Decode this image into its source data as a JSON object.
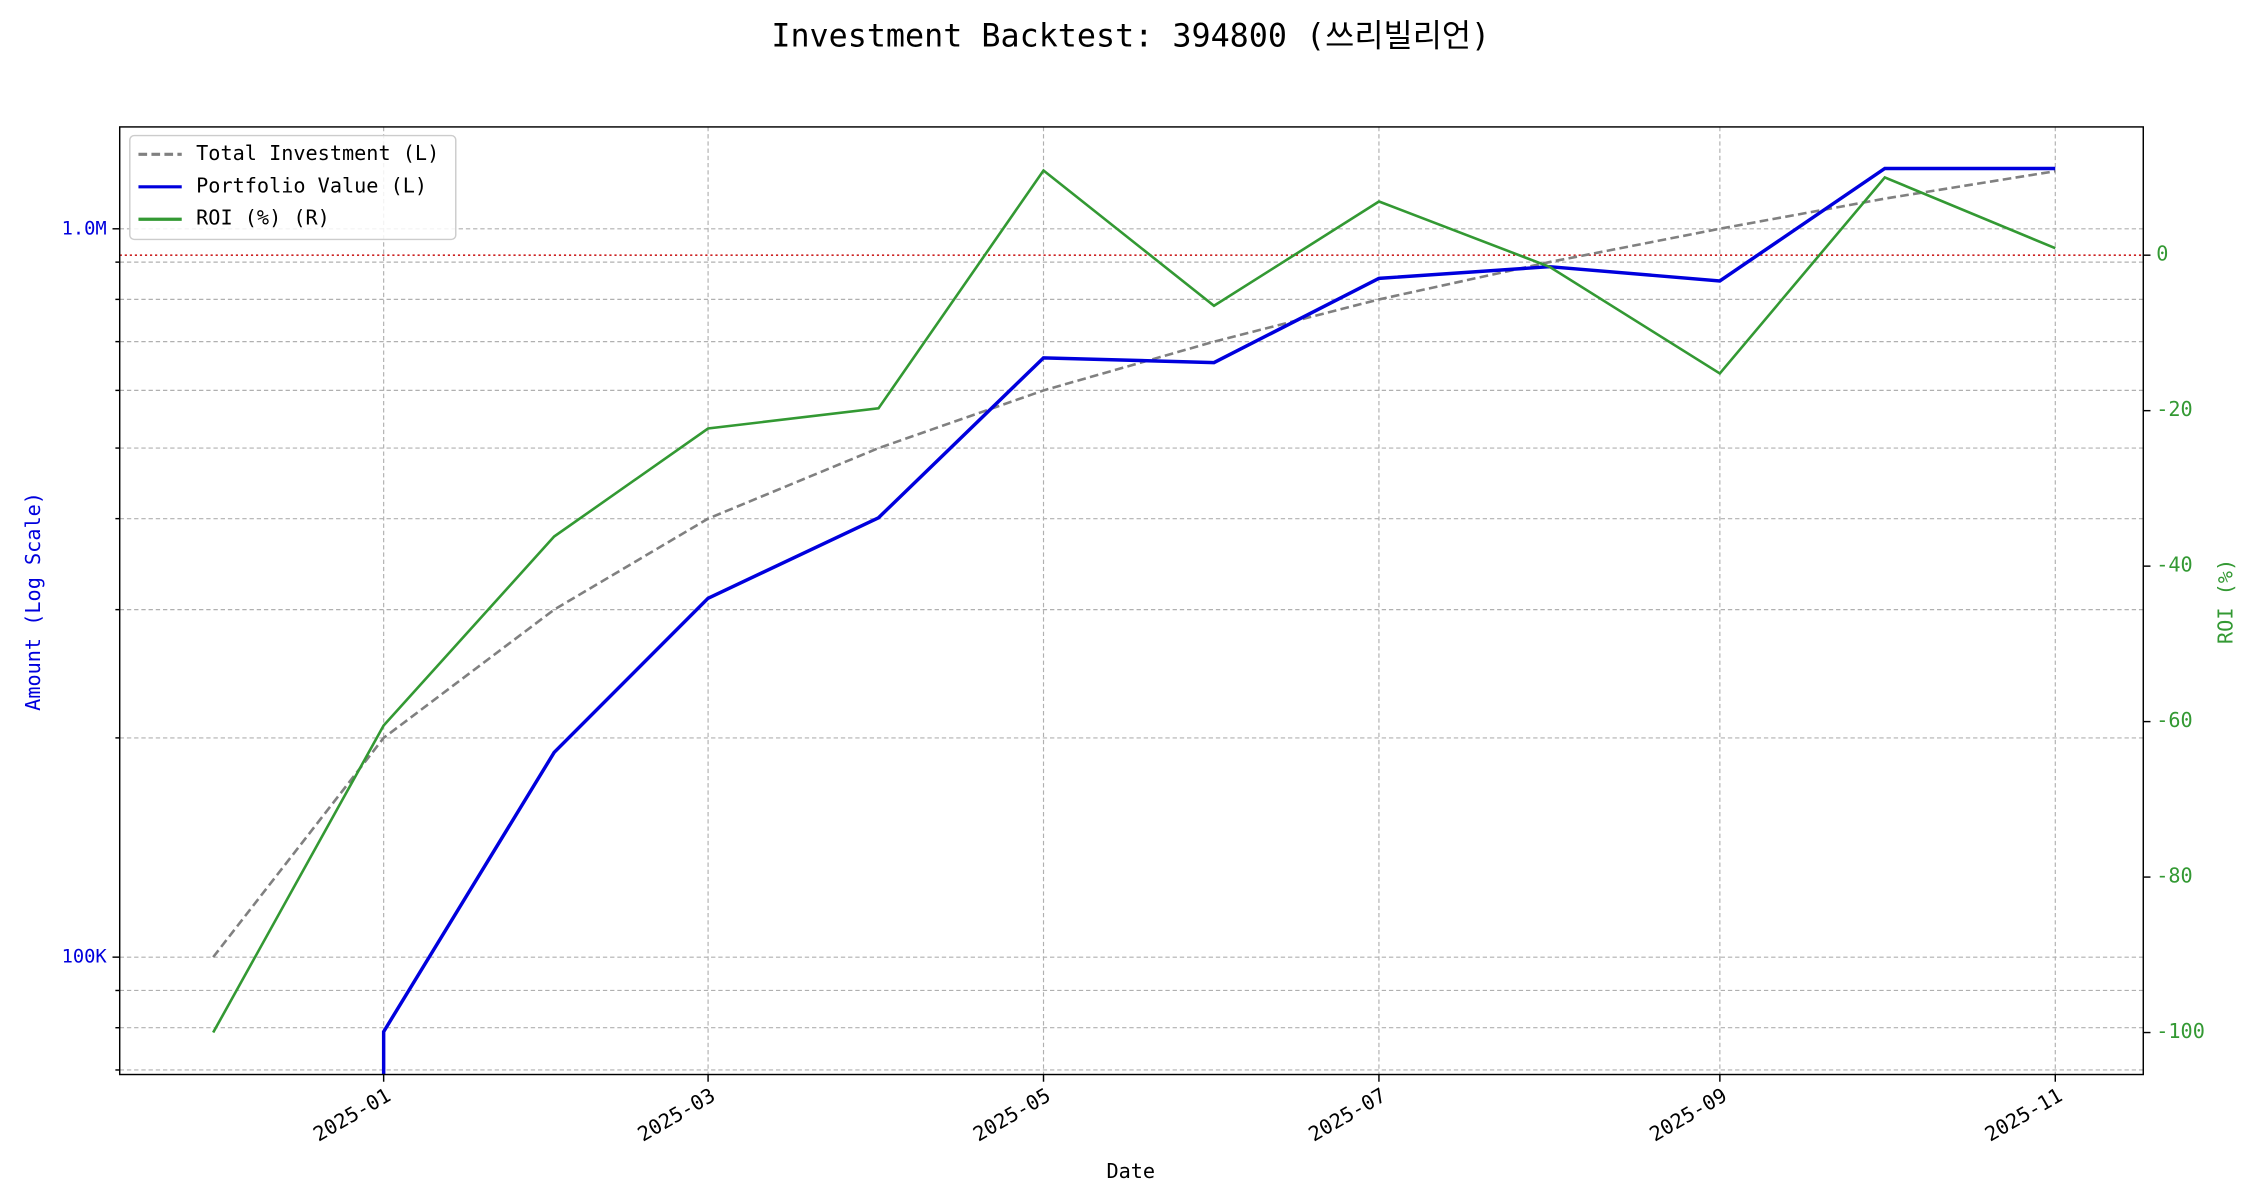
{
  "chart_data": {
    "type": "line",
    "title": "Investment Backtest: 394800 (쓰리빌리언)",
    "xlabel": "Date",
    "ylabel": "Amount (Log Scale)",
    "y2label": "ROI (%)",
    "x": [
      "2024-12",
      "2025-01",
      "2025-02",
      "2025-03",
      "2025-04",
      "2025-05",
      "2025-06",
      "2025-07",
      "2025-08",
      "2025-09",
      "2025-10",
      "2025-11"
    ],
    "series": [
      {
        "name": "Total Investment (L)",
        "color": "#808080",
        "linestyle": "dashed",
        "values": [
          100000,
          200000,
          300000,
          400000,
          500000,
          600000,
          700000,
          800000,
          900000,
          1000000,
          1100000,
          1200000
        ]
      },
      {
        "name": "Portfolio Value (L)",
        "color": "#0000dd",
        "linestyle": "solid",
        "values": [
          0,
          79000,
          191000,
          311000,
          401000,
          665000,
          655000,
          855000,
          887000,
          848000,
          1210000,
          1210000
        ]
      },
      {
        "name": "ROI (%) (R)",
        "color": "#339933",
        "linestyle": "solid",
        "axis": "y2",
        "values": [
          -100,
          -60.5,
          -36.2,
          -22.3,
          -19.7,
          10.9,
          -6.5,
          6.9,
          -1.5,
          -15.2,
          10.0,
          0.9
        ]
      }
    ],
    "xlim": [
      "2024-11-14",
      "2025-11-17"
    ],
    "xticks": [
      "2025-01",
      "2025-03",
      "2025-05",
      "2025-07",
      "2025-09",
      "2025-11"
    ],
    "ylog": true,
    "ylim": [
      69000,
      1380000
    ],
    "yticks": [
      {
        "value": 100000,
        "label": "100K"
      },
      {
        "value": 1000000,
        "label": "1.0M"
      }
    ],
    "yminor": [
      70000,
      80000,
      90000,
      200000,
      300000,
      400000,
      500000,
      600000,
      700000,
      800000,
      900000
    ],
    "y2lim": [
      -105.4,
      16.5
    ],
    "y2ticks": [
      -100,
      -80,
      -60,
      -40,
      -20,
      0
    ],
    "hline": {
      "value": 0,
      "axis": "y2",
      "color": "#cc2222"
    },
    "grid": true,
    "legend": "upper left"
  }
}
